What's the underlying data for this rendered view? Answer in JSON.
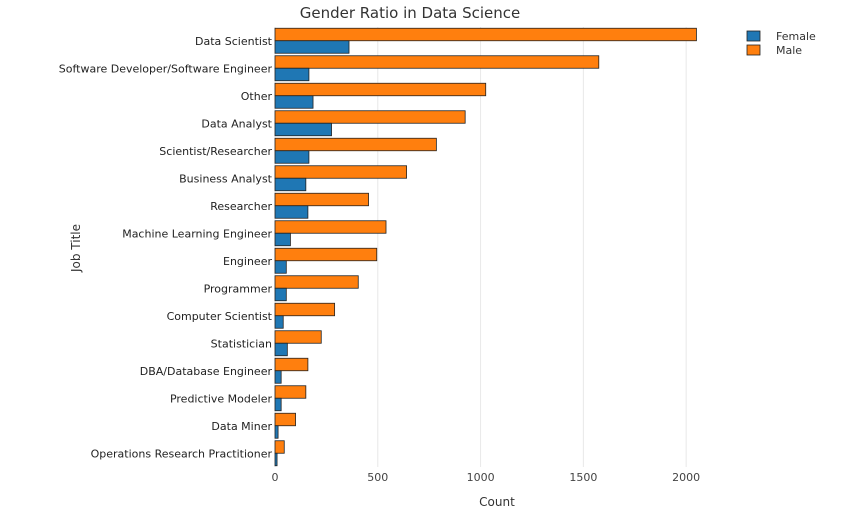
{
  "chart_data": {
    "type": "bar",
    "orientation": "horizontal",
    "title": "Gender Ratio in Data Science",
    "xlabel": "Count",
    "ylabel": "Job Title",
    "xlim": [
      0,
      2150
    ],
    "xticks": [
      0,
      500,
      1000,
      1500,
      2000
    ],
    "grid": true,
    "legend_position": "top-right",
    "categories": [
      "Data Scientist",
      "Software Developer/Software Engineer",
      "Other",
      "Data Analyst",
      "Scientist/Researcher",
      "Business Analyst",
      "Researcher",
      "Machine Learning Engineer",
      "Engineer",
      "Programmer",
      "Computer Scientist",
      "Statistician",
      "DBA/Database Engineer",
      "Predictive Modeler",
      "Data Miner",
      "Operations Research Practitioner"
    ],
    "series": [
      {
        "name": "Female",
        "color": "#1f77b4",
        "values": [
          360,
          165,
          185,
          275,
          165,
          150,
          160,
          75,
          55,
          55,
          40,
          60,
          30,
          30,
          15,
          10
        ]
      },
      {
        "name": "Male",
        "color": "#ff7f0e",
        "values": [
          2050,
          1575,
          1025,
          925,
          785,
          640,
          455,
          540,
          495,
          405,
          290,
          225,
          160,
          150,
          100,
          45
        ]
      }
    ]
  }
}
